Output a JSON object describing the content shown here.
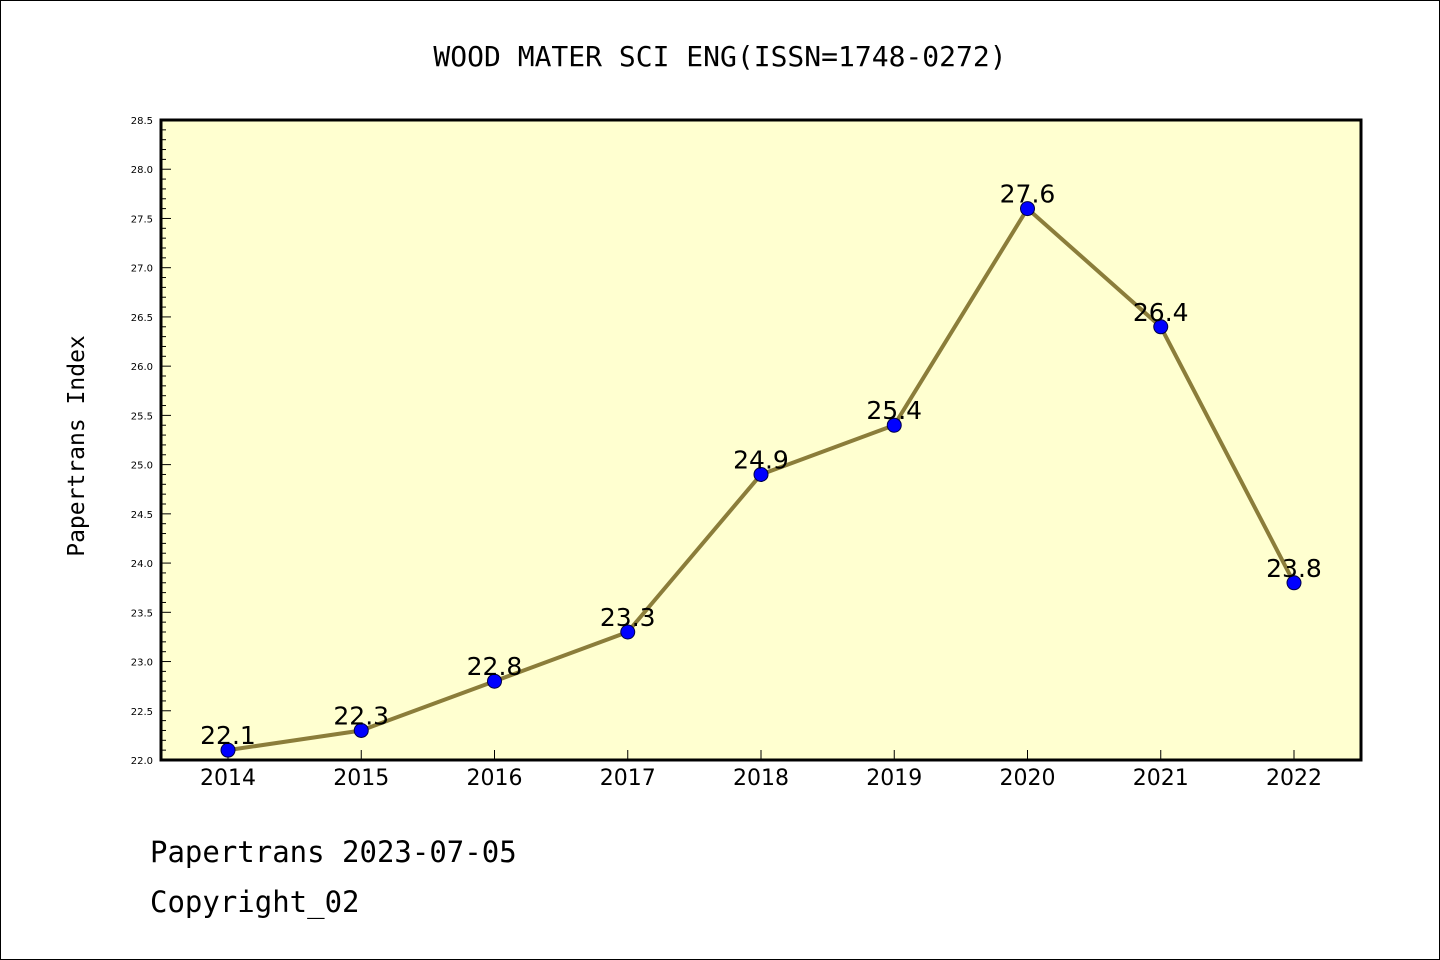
{
  "chart_data": {
    "type": "line",
    "title": "WOOD MATER SCI ENG(ISSN=1748-0272)",
    "xlabel": "",
    "ylabel": "Papertrans Index",
    "categories": [
      "2014",
      "2015",
      "2016",
      "2017",
      "2018",
      "2019",
      "2020",
      "2021",
      "2022"
    ],
    "values": [
      22.1,
      22.3,
      22.8,
      23.3,
      24.9,
      25.4,
      27.6,
      26.4,
      23.8
    ],
    "data_labels": [
      "22.1",
      "22.3",
      "22.8",
      "23.3",
      "24.9",
      "25.4",
      "27.6",
      "26.4",
      "23.8"
    ],
    "ylim": [
      22.0,
      28.5
    ],
    "yticks": [
      "22.0",
      "22.5",
      "23.0",
      "23.5",
      "24.0",
      "24.5",
      "25.0",
      "25.5",
      "26.0",
      "26.5",
      "27.0",
      "27.5",
      "28.0",
      "28.5"
    ],
    "ytick_values": [
      22.0,
      22.5,
      23.0,
      23.5,
      24.0,
      24.5,
      25.0,
      25.5,
      26.0,
      26.5,
      27.0,
      27.5,
      28.0,
      28.5
    ],
    "grid": false,
    "legend": "none",
    "colors": {
      "plot_background": "#ffffd0",
      "line": "#8b7d3a",
      "marker": "#0000ff"
    }
  },
  "footer": {
    "source": "Papertrans 2023-07-05",
    "copyright": "Copyright_02"
  }
}
